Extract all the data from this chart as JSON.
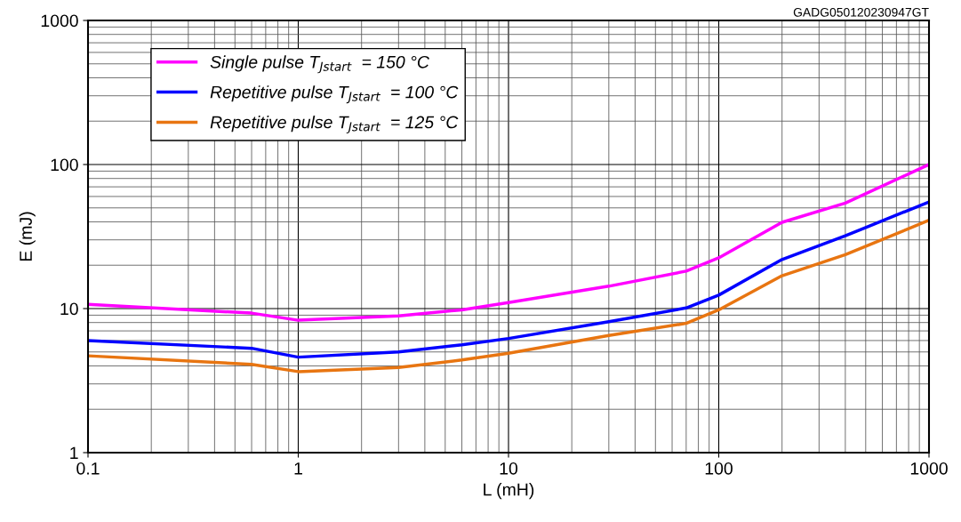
{
  "chart_data": {
    "type": "line",
    "xlabel": "L (mH)",
    "ylabel": "E (mJ)",
    "annotations": [
      "GADG050120230947GT"
    ],
    "x": [
      0.1,
      0.6,
      1,
      3,
      6,
      10,
      30,
      70,
      100,
      200,
      400,
      1000
    ],
    "series": [
      {
        "name": "Single pulse T$_{Jstart}$  = 150 °C",
        "color": "#ff00ff",
        "values": [
          10.7,
          9.3,
          8.3,
          8.9,
          9.8,
          11.0,
          14.3,
          18.2,
          22.5,
          39.7,
          54,
          100
        ]
      },
      {
        "name": "Repetitive pulse T$_{Jstart}$  = 100 °C",
        "color": "#0000ff",
        "values": [
          6.0,
          5.3,
          4.6,
          5.0,
          5.6,
          6.2,
          8.1,
          10.1,
          12.4,
          21.9,
          32,
          55
        ]
      },
      {
        "name": "Repetitive pulse T$_{Jstart}$  = 125 °C",
        "color": "#e87511",
        "values": [
          4.7,
          4.1,
          3.65,
          3.9,
          4.4,
          4.9,
          6.5,
          7.9,
          9.8,
          16.9,
          23.7,
          41
        ]
      }
    ],
    "log": "xy",
    "xlim": [
      0.1,
      1000
    ],
    "ylim": [
      1,
      1000
    ],
    "xticks": [
      0.1,
      1,
      10,
      100,
      1000
    ],
    "yticks": [
      1,
      10,
      100,
      1000
    ],
    "grid": true,
    "legend": "top left",
    "marker": "none",
    "line_style": "solid"
  }
}
